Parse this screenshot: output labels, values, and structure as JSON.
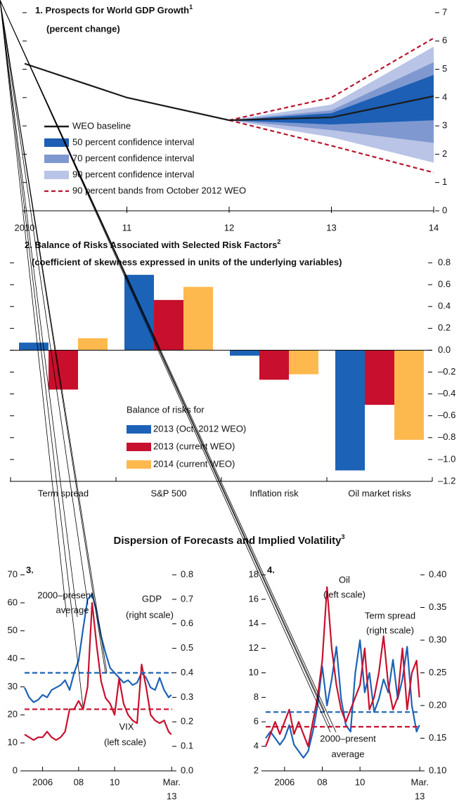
{
  "section_title": "Dispersion of Forecasts and Implied Volatility",
  "section_title_note": "3",
  "chart_data": [
    {
      "type": "fan",
      "title": "1. Prospects for World GDP Growth",
      "title_note": "1",
      "subtitle": "(percent change)",
      "x": [
        2010,
        2011,
        2012,
        2013,
        2014
      ],
      "xlim": [
        2010,
        2014
      ],
      "xticks": [
        2010,
        {
          "value": 2011,
          "label": "11"
        },
        {
          "value": 2012,
          "label": "12"
        },
        {
          "value": 2013,
          "label": "13"
        },
        {
          "value": 2014,
          "label": "14"
        }
      ],
      "ylim": [
        0,
        7
      ],
      "yticks": [
        0,
        1,
        2,
        3,
        4,
        5,
        6,
        7
      ],
      "series": [
        {
          "name": "WEO baseline",
          "color": "#1a1a1a",
          "values": [
            5.2,
            4.0,
            3.2,
            3.3,
            4.05
          ]
        },
        {
          "name": "50 percent confidence interval",
          "color": "#1c5fb4",
          "lower": [
            null,
            null,
            3.2,
            3.05,
            3.2
          ],
          "upper": [
            null,
            null,
            3.2,
            3.45,
            4.8
          ]
        },
        {
          "name": "70 percent confidence interval",
          "color": "#7f98d0",
          "lower": [
            null,
            null,
            3.2,
            2.85,
            2.4
          ],
          "upper": [
            null,
            null,
            3.2,
            3.55,
            5.25
          ]
        },
        {
          "name": "90 percent confidence interval",
          "color": "#b9c4e6",
          "lower": [
            null,
            null,
            3.2,
            2.6,
            1.7
          ],
          "upper": [
            null,
            null,
            3.2,
            3.75,
            5.8
          ]
        },
        {
          "name": "90 percent bands from October 2012 WEO",
          "color": "#b5162e",
          "dashed": true,
          "lower": [
            null,
            null,
            3.2,
            2.3,
            1.35
          ],
          "upper": [
            null,
            null,
            3.2,
            4.0,
            6.1
          ]
        }
      ]
    },
    {
      "type": "bar",
      "title": "2. Balance of Risks Associated with Selected Risk Factors",
      "title_note": "2",
      "subtitle": "(coefficient of skewness expressed in units of the underlying variables)",
      "categories": [
        "Term spread",
        "S&P 500",
        "Inflation risk",
        "Oil market risks"
      ],
      "ylim": [
        -1.2,
        0.8
      ],
      "yticks": [
        {
          "value": -1.2,
          "label": "–1.2"
        },
        {
          "value": -1.0,
          "label": "–1.0"
        },
        {
          "value": -0.8,
          "label": "–0.8"
        },
        {
          "value": -0.6,
          "label": "–0.6"
        },
        {
          "value": -0.4,
          "label": "–0.4"
        },
        {
          "value": -0.2,
          "label": "–0.2"
        },
        {
          "value": 0,
          "label": "0.0"
        },
        0.2,
        0.4,
        0.6,
        0.8
      ],
      "legend_title": "Balance of risks for",
      "series": [
        {
          "name": "2013 (Oct. 2012 WEO)",
          "color": "#1c63b7",
          "values": [
            0.07,
            0.69,
            -0.05,
            -1.1
          ]
        },
        {
          "name": "2013 (current WEO)",
          "color": "#c8102e",
          "values": [
            -0.36,
            0.46,
            -0.27,
            -0.5
          ]
        },
        {
          "name": "2014 (current WEO)",
          "color": "#fdb94e",
          "values": [
            0.11,
            0.58,
            -0.22,
            -0.82
          ]
        }
      ]
    },
    {
      "type": "line",
      "label": "3.",
      "x": [
        2005,
        2005.25,
        2005.5,
        2005.75,
        2006,
        2006.25,
        2006.5,
        2006.75,
        2007,
        2007.25,
        2007.5,
        2007.75,
        2008,
        2008.25,
        2008.5,
        2008.75,
        2009,
        2009.25,
        2009.5,
        2009.75,
        2010,
        2010.25,
        2010.5,
        2010.75,
        2011,
        2011.25,
        2011.5,
        2011.75,
        2012,
        2012.25,
        2012.5,
        2012.75,
        2013,
        2013.15
      ],
      "xlim": [
        2005,
        2013.2
      ],
      "xticks": [
        2006,
        {
          "value": 2008,
          "label": "08"
        },
        {
          "value": 2010,
          "label": "10"
        },
        {
          "value": 2013.17,
          "label": [
            "Mar.",
            "13"
          ]
        }
      ],
      "ylim": [
        0,
        70
      ],
      "yticks": [
        0,
        10,
        20,
        30,
        40,
        50,
        60,
        70
      ],
      "y2lim": [
        0,
        0.8
      ],
      "y2ticks": [
        {
          "value": 0,
          "label": "0.0"
        },
        0.1,
        0.2,
        0.3,
        0.4,
        0.5,
        0.6,
        0.7,
        0.8
      ],
      "annotation": [
        "2000–present",
        "average"
      ],
      "reference_lines": [
        {
          "value": 0.4,
          "axis": "y2",
          "color": "#1c63b7"
        },
        {
          "value": 22,
          "color": "#c8102e"
        }
      ],
      "series": [
        {
          "name": "GDP",
          "scale_note": "(right scale)",
          "axis": "y2",
          "color": "#1c63b7",
          "values": [
            0.34,
            0.3,
            0.28,
            0.29,
            0.31,
            0.3,
            0.33,
            0.34,
            0.35,
            0.37,
            0.33,
            0.4,
            0.45,
            0.58,
            0.7,
            0.72,
            0.65,
            0.55,
            0.48,
            0.42,
            0.4,
            0.38,
            0.36,
            0.37,
            0.35,
            0.36,
            0.4,
            0.38,
            0.34,
            0.33,
            0.38,
            0.33,
            0.3,
            0.31
          ]
        },
        {
          "name": "VIX",
          "scale_note": "(left scale)",
          "color": "#c8102e",
          "values": [
            13,
            12,
            11,
            12,
            12,
            14,
            12,
            11,
            12,
            14,
            22,
            22,
            25,
            22,
            30,
            60,
            45,
            32,
            26,
            24,
            20,
            33,
            24,
            20,
            18,
            17,
            38,
            30,
            20,
            18,
            17,
            18,
            14,
            13
          ]
        }
      ]
    },
    {
      "type": "line",
      "label": "4.",
      "x": [
        2005,
        2005.25,
        2005.5,
        2005.75,
        2006,
        2006.25,
        2006.5,
        2006.75,
        2007,
        2007.25,
        2007.5,
        2007.75,
        2008,
        2008.25,
        2008.5,
        2008.75,
        2009,
        2009.25,
        2009.5,
        2009.75,
        2010,
        2010.25,
        2010.5,
        2010.75,
        2011,
        2011.25,
        2011.5,
        2011.75,
        2012,
        2012.25,
        2012.5,
        2012.75,
        2013,
        2013.15
      ],
      "xlim": [
        2005,
        2013.2
      ],
      "xticks": [
        2006,
        {
          "value": 2008,
          "label": "08"
        },
        {
          "value": 2010,
          "label": "10"
        },
        {
          "value": 2013.17,
          "label": [
            "Mar.",
            "13"
          ]
        }
      ],
      "ylim": [
        2,
        18
      ],
      "yticks": [
        2,
        4,
        6,
        8,
        10,
        12,
        14,
        16,
        18
      ],
      "y2lim": [
        0.1,
        0.4
      ],
      "y2ticks": [
        {
          "value": 0.1,
          "label": "0.10"
        },
        0.15,
        {
          "value": 0.2,
          "label": "0.20"
        },
        0.25,
        {
          "value": 0.3,
          "label": "0.30"
        },
        0.35,
        {
          "value": 0.4,
          "label": "0.40"
        }
      ],
      "annotation": [
        "2000–present",
        "average"
      ],
      "reference_lines": [
        {
          "value": 0.19,
          "axis": "y2",
          "color": "#1c63b7"
        },
        {
          "value": 5.6,
          "color": "#c8102e"
        }
      ],
      "series": [
        {
          "name": "Term spread",
          "scale_note": "(right scale)",
          "axis": "y2",
          "color": "#1c63b7",
          "values": [
            0.15,
            0.16,
            0.15,
            0.14,
            0.15,
            0.17,
            0.14,
            0.13,
            0.12,
            0.13,
            0.16,
            0.2,
            0.26,
            0.2,
            0.24,
            0.29,
            0.21,
            0.17,
            0.16,
            0.25,
            0.3,
            0.22,
            0.25,
            0.19,
            0.21,
            0.24,
            0.22,
            0.27,
            0.21,
            0.24,
            0.29,
            0.2,
            0.16,
            0.17
          ]
        },
        {
          "name": "Oil",
          "scale_note": "(left scale)",
          "color": "#c8102e",
          "values": [
            4,
            5,
            6,
            5,
            6,
            7,
            5,
            6,
            5,
            4,
            6,
            8,
            11,
            17,
            12,
            9,
            7,
            6,
            7,
            8,
            9,
            12,
            7,
            8,
            10,
            13,
            9,
            7,
            8,
            12,
            7,
            10,
            11,
            8
          ]
        }
      ]
    }
  ]
}
